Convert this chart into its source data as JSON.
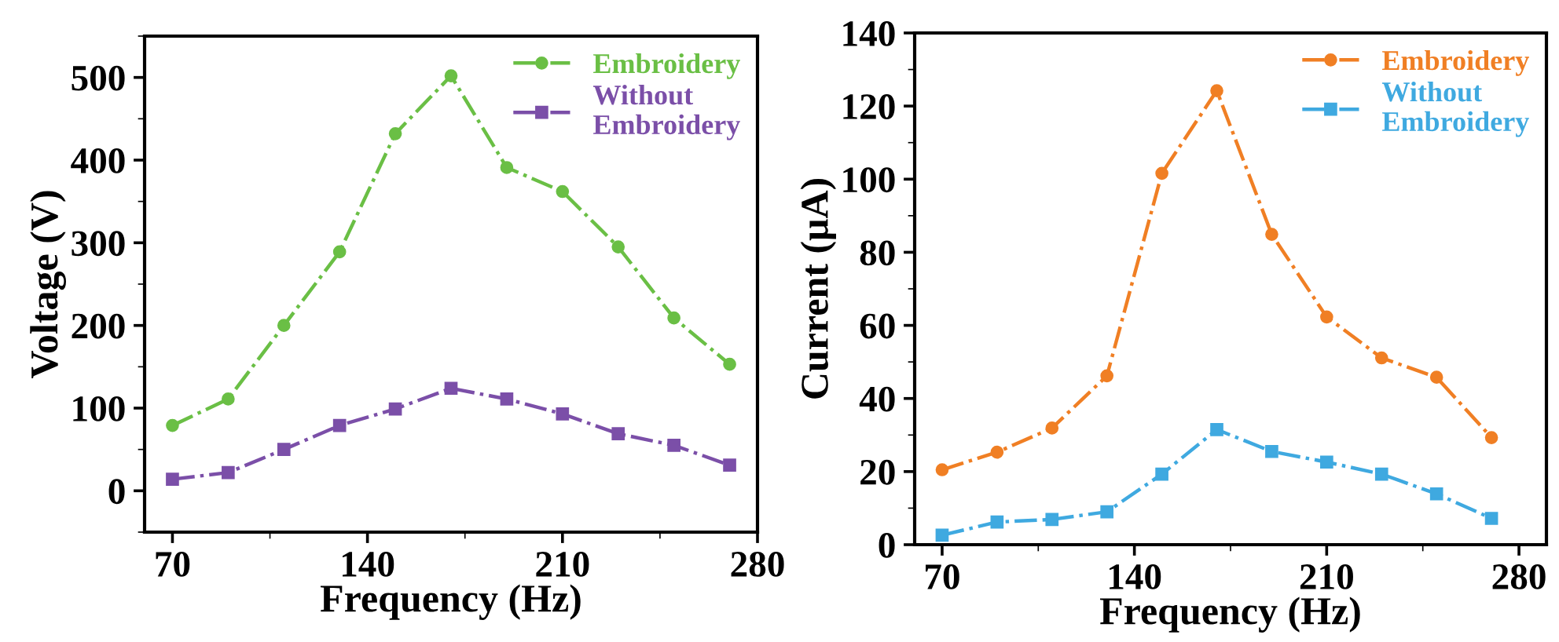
{
  "chart_data": [
    {
      "type": "line",
      "xlabel": "Frequency (Hz)",
      "ylabel": "Voltage (V)",
      "x": [
        70,
        90,
        110,
        130,
        150,
        170,
        190,
        210,
        230,
        250,
        270
      ],
      "xlim": [
        60,
        280
      ],
      "xticks": [
        70,
        140,
        210,
        280
      ],
      "ylim": [
        -50,
        550
      ],
      "yticks": [
        0,
        100,
        200,
        300,
        400,
        500
      ],
      "legend": "top right",
      "line_style": "dashdot",
      "grid": false,
      "series": [
        {
          "name": "Embroidery",
          "color": "#6abf45",
          "marker": "circle",
          "values": [
            79,
            111,
            200,
            289,
            432,
            502,
            391,
            362,
            295,
            209,
            153
          ]
        },
        {
          "name": "Without\nEmbroidery",
          "color": "#7b4fa8",
          "marker": "square",
          "values": [
            14,
            22,
            50,
            79,
            99,
            124,
            111,
            93,
            69,
            55,
            31
          ]
        }
      ]
    },
    {
      "type": "line",
      "xlabel": "Frequency (Hz)",
      "ylabel": "Current (μA)",
      "x": [
        70,
        90,
        110,
        130,
        150,
        170,
        190,
        210,
        230,
        250,
        270
      ],
      "xlim": [
        60,
        290
      ],
      "xticks": [
        70,
        140,
        210,
        280
      ],
      "ylim": [
        0,
        140
      ],
      "yticks": [
        0,
        20,
        40,
        60,
        80,
        100,
        120,
        140
      ],
      "legend": "top right",
      "line_style": "dashdot",
      "grid": false,
      "series": [
        {
          "name": "Embroidery",
          "color": "#f07f24",
          "marker": "circle",
          "values": [
            20.5,
            25.3,
            31.9,
            46.2,
            101.6,
            124.2,
            84.9,
            62.3,
            51.1,
            45.8,
            29.3
          ]
        },
        {
          "name": "Without\nEmbroidery",
          "color": "#3fa9e0",
          "marker": "square",
          "values": [
            2.6,
            6.2,
            6.9,
            9,
            19.3,
            31.5,
            25.5,
            22.6,
            19.3,
            13.9,
            7.2
          ]
        }
      ]
    }
  ]
}
